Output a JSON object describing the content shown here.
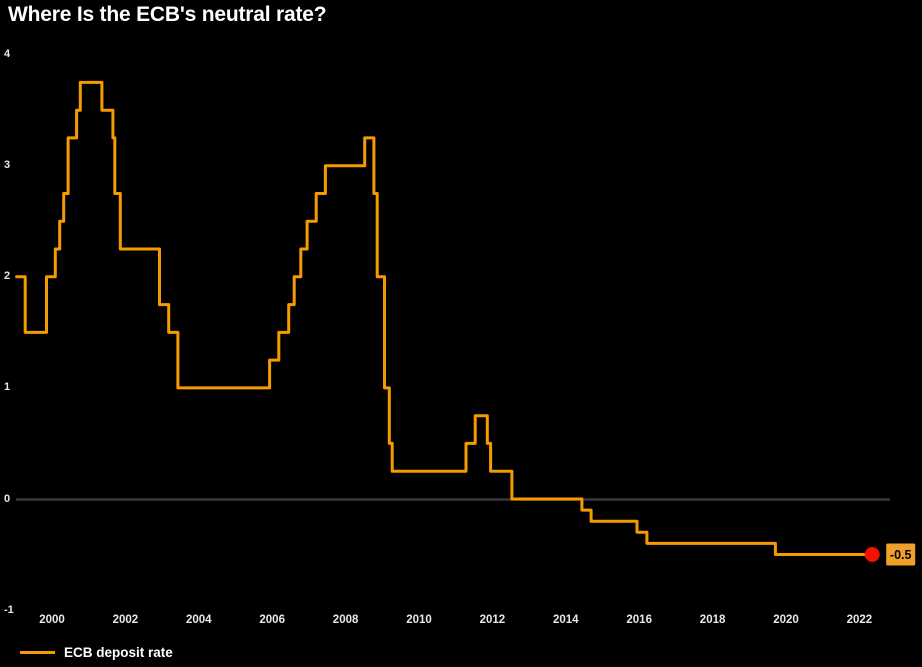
{
  "title": "Where Is the ECB's neutral rate?",
  "legend": {
    "label": "ECB deposit rate"
  },
  "colors": {
    "background": "#000000",
    "line": "#F59B00",
    "marker_fill": "#F01400",
    "end_label_bg": "#EFA02A",
    "end_label_text": "#000000",
    "zero_line": "#3A3A3A",
    "tick_text": "#E8E8E8",
    "title_text": "#FFFFFF"
  },
  "chart_data": {
    "type": "line",
    "title": "Where Is the ECB's neutral rate?",
    "xlabel": "",
    "ylabel": "",
    "x_range": [
      1999.0,
      2022.35
    ],
    "y_range": [
      -1,
      4
    ],
    "x_ticks": [
      "2000",
      "2002",
      "2004",
      "2006",
      "2008",
      "2010",
      "2012",
      "2014",
      "2016",
      "2018",
      "2020",
      "2022"
    ],
    "x_tick_years": [
      2000,
      2002,
      2004,
      2006,
      2008,
      2010,
      2012,
      2014,
      2016,
      2018,
      2020,
      2022
    ],
    "y_ticks": [
      "4",
      "3",
      "2",
      "1",
      "0",
      "-1"
    ],
    "y_tick_values": [
      4,
      3,
      2,
      1,
      0,
      -1
    ],
    "grid": false,
    "zero_baseline": true,
    "legend_position": "bottom-left",
    "end_label": "-0.5",
    "end_value": -0.5,
    "series": [
      {
        "name": "ECB deposit rate",
        "step": "after",
        "points": [
          [
            1999.0,
            2.0
          ],
          [
            1999.27,
            1.5
          ],
          [
            1999.85,
            2.0
          ],
          [
            2000.09,
            2.25
          ],
          [
            2000.21,
            2.5
          ],
          [
            2000.32,
            2.75
          ],
          [
            2000.44,
            3.25
          ],
          [
            2000.67,
            3.5
          ],
          [
            2000.77,
            3.75
          ],
          [
            2001.36,
            3.5
          ],
          [
            2001.66,
            3.25
          ],
          [
            2001.71,
            2.75
          ],
          [
            2001.86,
            2.25
          ],
          [
            2002.93,
            1.75
          ],
          [
            2003.18,
            1.5
          ],
          [
            2003.43,
            1.0
          ],
          [
            2005.93,
            1.25
          ],
          [
            2006.18,
            1.5
          ],
          [
            2006.45,
            1.75
          ],
          [
            2006.6,
            2.0
          ],
          [
            2006.78,
            2.25
          ],
          [
            2006.95,
            2.5
          ],
          [
            2007.2,
            2.75
          ],
          [
            2007.45,
            3.0
          ],
          [
            2008.52,
            3.25
          ],
          [
            2008.77,
            2.75
          ],
          [
            2008.86,
            2.0
          ],
          [
            2009.06,
            1.0
          ],
          [
            2009.19,
            0.5
          ],
          [
            2009.27,
            0.25
          ],
          [
            2011.28,
            0.5
          ],
          [
            2011.53,
            0.75
          ],
          [
            2011.86,
            0.5
          ],
          [
            2011.95,
            0.25
          ],
          [
            2012.53,
            0.0
          ],
          [
            2014.44,
            -0.1
          ],
          [
            2014.69,
            -0.2
          ],
          [
            2015.94,
            -0.3
          ],
          [
            2016.21,
            -0.4
          ],
          [
            2019.71,
            -0.5
          ],
          [
            2022.35,
            -0.5
          ]
        ]
      }
    ]
  }
}
